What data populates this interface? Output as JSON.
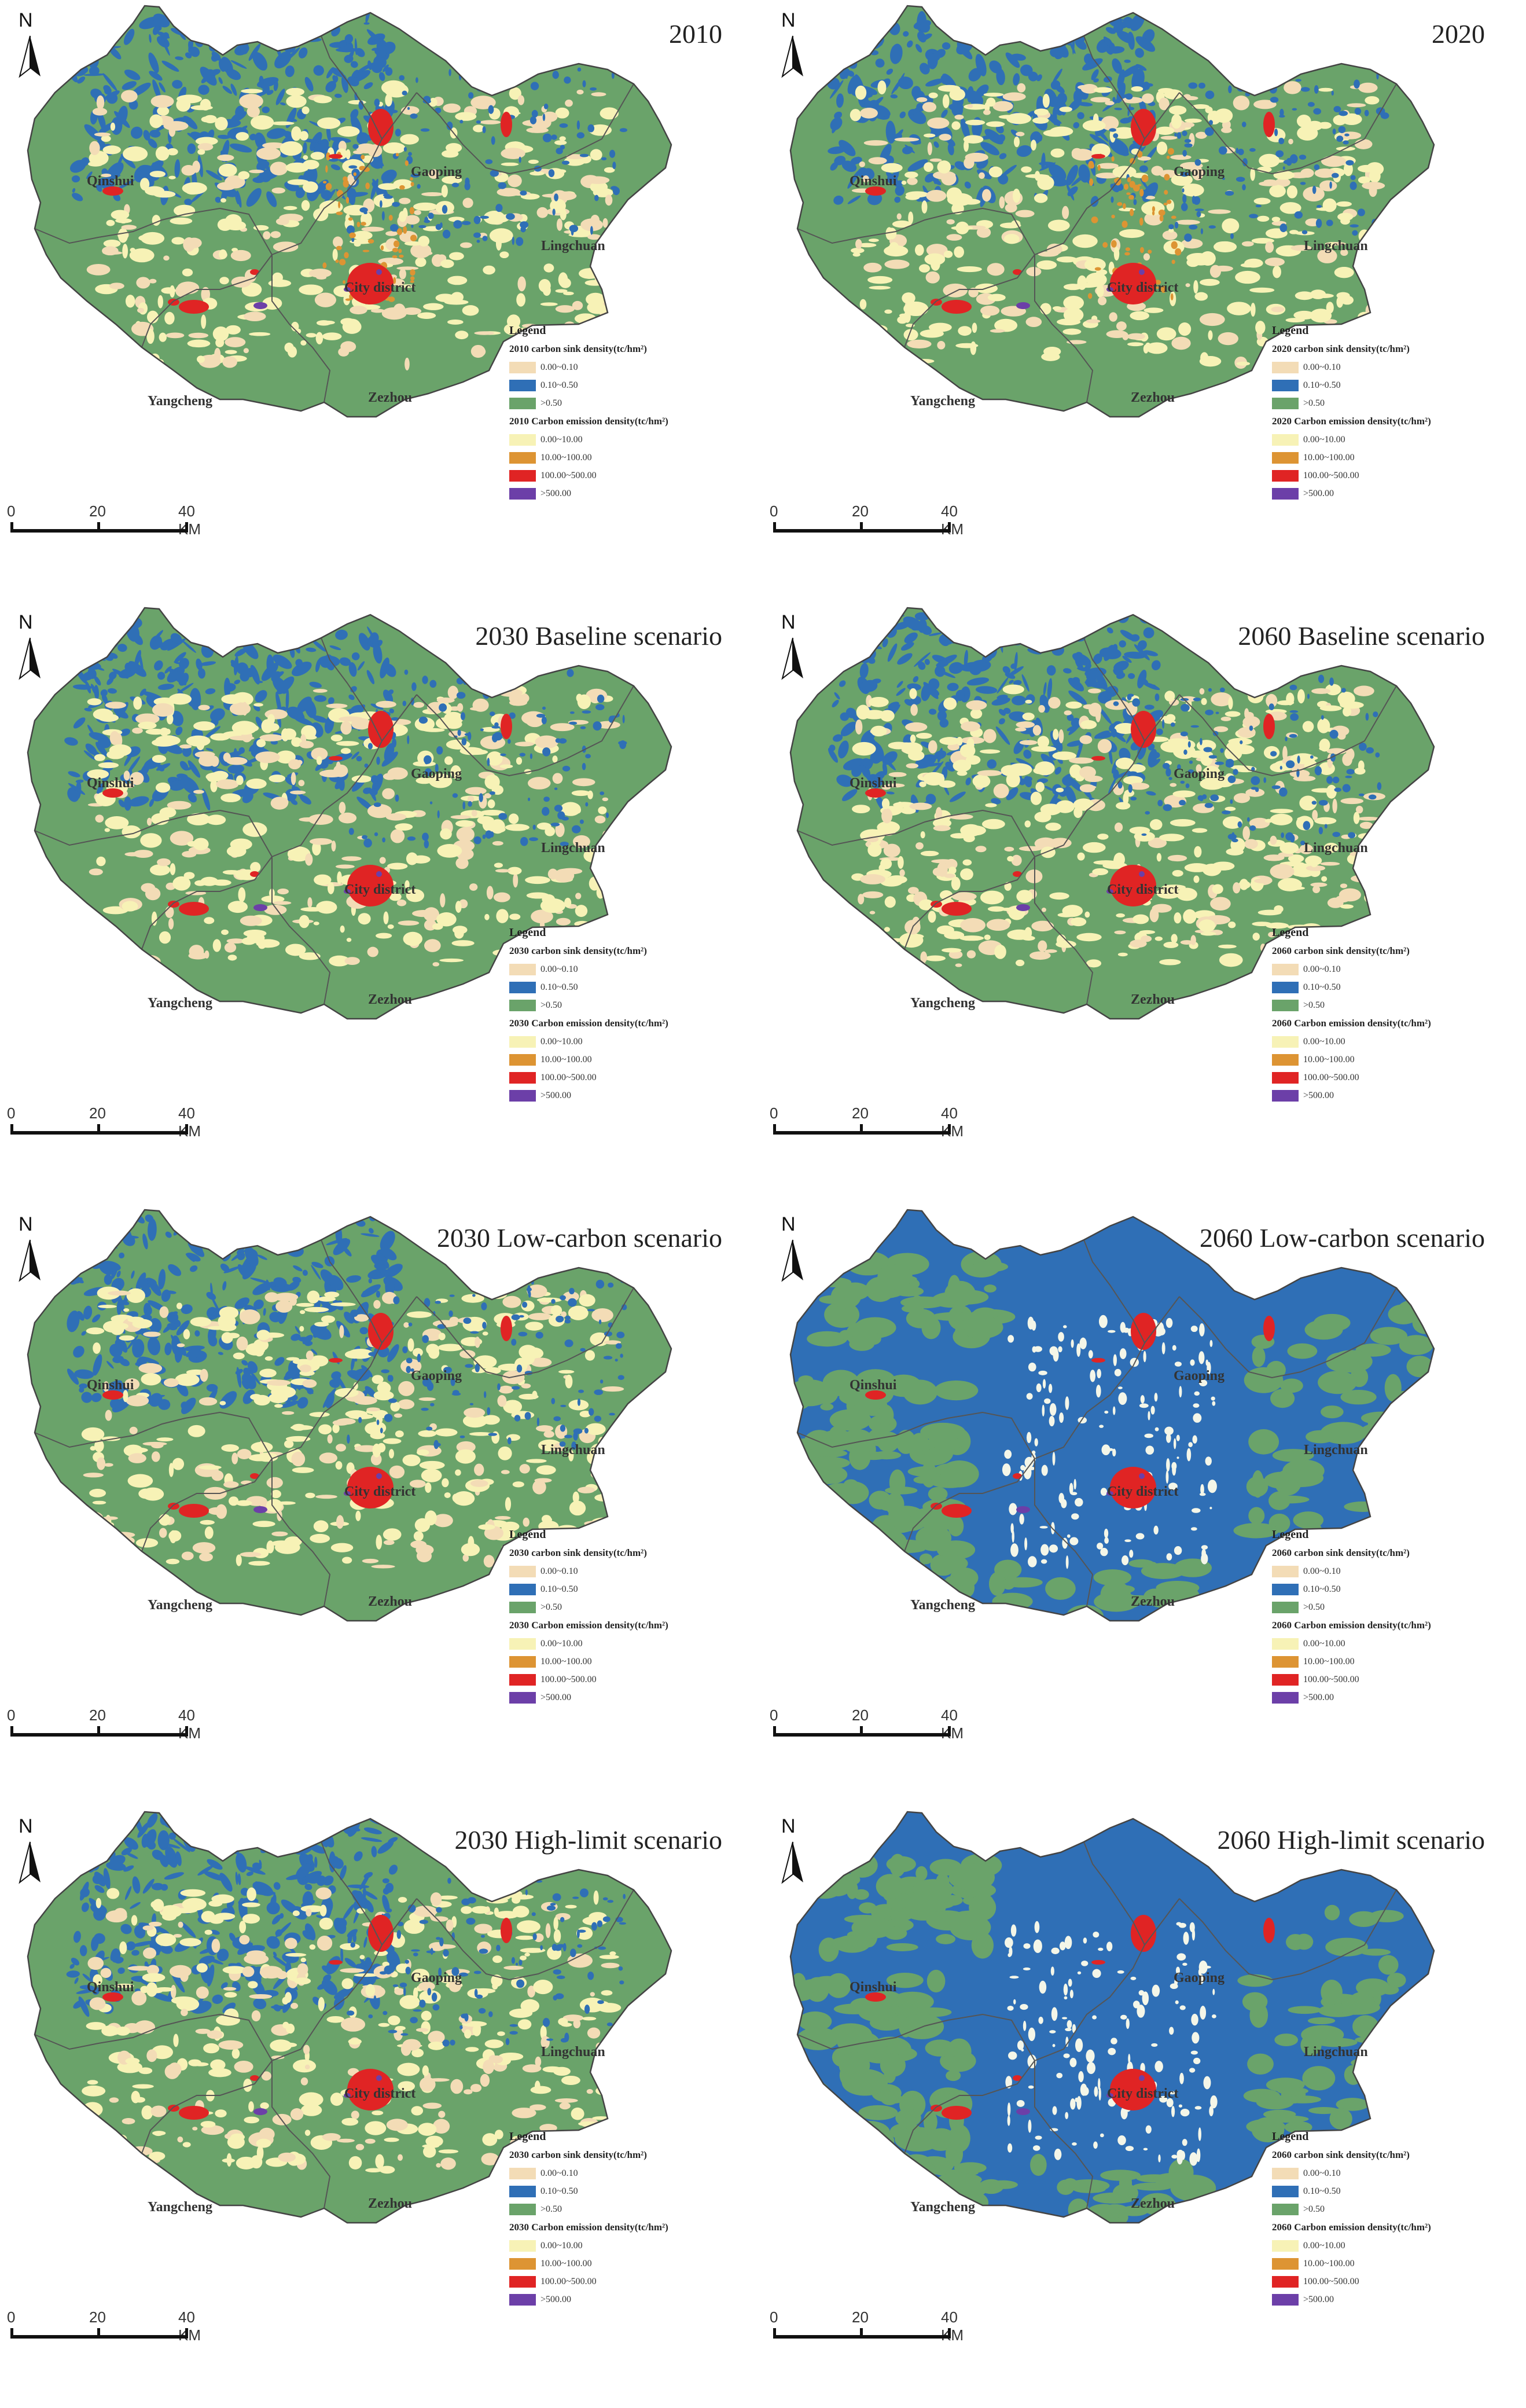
{
  "colors": {
    "sink_low": "#f3dcb6",
    "sink_mid": "#2f6fb6",
    "sink_high": "#6aa36a",
    "emis_low": "#f7f2b6",
    "emis_mid": "#dd9433",
    "emis_high": "#e02424",
    "emis_top": "#6c3fa8"
  },
  "north_label": "N",
  "place_names": {
    "qinshui": "Qinshui",
    "gaoping": "Gaoping",
    "lingchuan": "Lingchuan",
    "city_district": "City district",
    "yangcheng": "Yangcheng",
    "zezhou": "Zezhou"
  },
  "scale_bar": {
    "ticks": [
      "0",
      "20",
      "40 KM"
    ]
  },
  "legend_common": {
    "title": "Legend",
    "sink_classes": [
      "0.00~0.10",
      "0.10~0.50",
      ">0.50"
    ],
    "emission_classes": [
      "0.00~10.00",
      "10.00~100.00",
      "100.00~500.00",
      ">500.00"
    ]
  },
  "panels": [
    {
      "title": "2010",
      "sink_title": "2010 carbon sink density(tc/hm²)",
      "emission_title": "2010 Carbon emission density(tc/hm²)",
      "dominant_sink": "green"
    },
    {
      "title": "2020",
      "sink_title": "2020 carbon sink density(tc/hm²)",
      "emission_title": "2020 Carbon emission density(tc/hm²)",
      "dominant_sink": "green"
    },
    {
      "title": "2030 Baseline scenario",
      "sink_title": "2030 carbon sink density(tc/hm²)",
      "emission_title": "2030 Carbon emission density(tc/hm²)",
      "dominant_sink": "green"
    },
    {
      "title": "2060 Baseline scenario",
      "sink_title": "2060 carbon sink density(tc/hm²)",
      "emission_title": "2060 Carbon emission density(tc/hm²)",
      "dominant_sink": "green"
    },
    {
      "title": "2030 Low-carbon scenario",
      "sink_title": "2030 carbon sink density(tc/hm²)",
      "emission_title": "2030 Carbon emission density(tc/hm²)",
      "dominant_sink": "green"
    },
    {
      "title": "2060 Low-carbon scenario",
      "sink_title": "2060 carbon sink density(tc/hm²)",
      "emission_title": "2060 Carbon emission density(tc/hm²)",
      "dominant_sink": "blue"
    },
    {
      "title": "2030 High-limit scenario",
      "sink_title": "2030 carbon sink density(tc/hm²)",
      "emission_title": "2030 Carbon emission density(tc/hm²)",
      "dominant_sink": "green"
    },
    {
      "title": "2060 High-limit scenario",
      "sink_title": "2060 carbon sink density(tc/hm²)",
      "emission_title": "2060 Carbon emission density(tc/hm²)",
      "dominant_sink": "blue"
    }
  ]
}
